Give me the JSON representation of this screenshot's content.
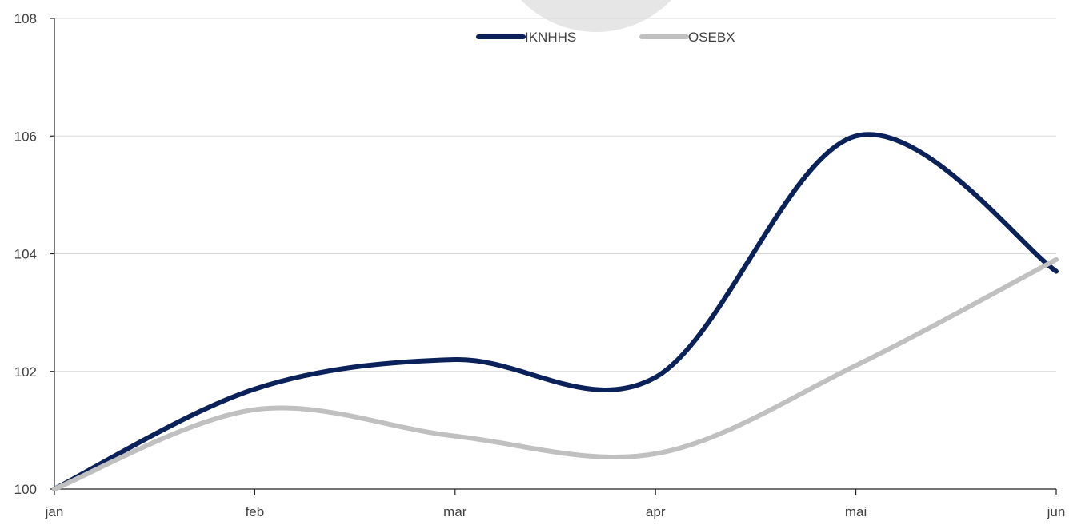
{
  "chart_data": {
    "type": "line",
    "categories": [
      "jan",
      "feb",
      "mar",
      "apr",
      "mai",
      "jun"
    ],
    "ylim": [
      100,
      108
    ],
    "yticks": [
      100,
      102,
      104,
      106,
      108
    ],
    "grid": true,
    "legend_position": "top-center",
    "series": [
      {
        "name": "IKNHHS",
        "color": "#0b2159",
        "values": [
          100,
          101.7,
          102.2,
          101.9,
          106.0,
          103.7
        ]
      },
      {
        "name": "OSEBX",
        "color": "#c0c0c0",
        "values": [
          100,
          101.35,
          100.9,
          100.6,
          102.1,
          103.9
        ]
      }
    ]
  }
}
